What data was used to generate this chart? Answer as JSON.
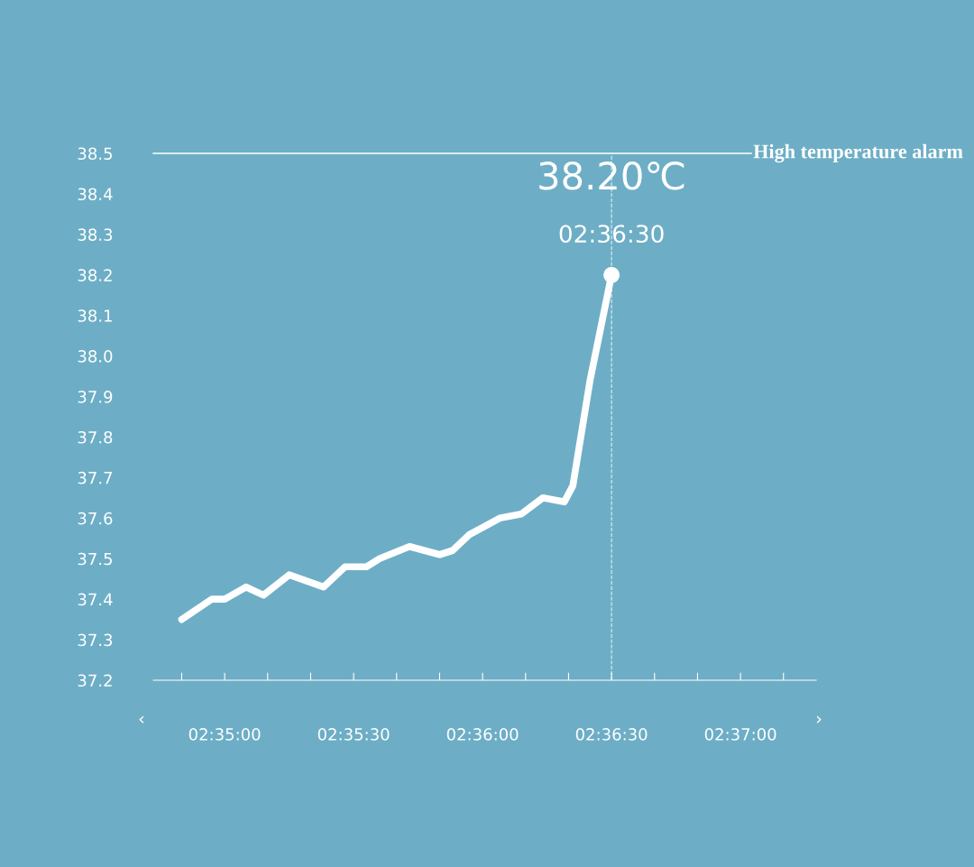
{
  "chart_data": {
    "type": "line",
    "x": [
      2.580556,
      2.5825,
      2.583333,
      2.584722,
      2.585833,
      2.5875,
      2.589722,
      2.591111,
      2.5925,
      2.593333,
      2.595278,
      2.597222,
      2.598056,
      2.599167,
      2.601111,
      2.6025,
      2.603889,
      2.605278,
      2.605833,
      2.606944,
      2.608333
    ],
    "series": [
      {
        "color": "#ffffff",
        "values": [
          37.35,
          37.4,
          37.4,
          37.43,
          37.41,
          37.46,
          37.43,
          37.48,
          37.48,
          37.5,
          37.53,
          37.51,
          37.52,
          37.56,
          37.6,
          37.61,
          37.65,
          37.64,
          37.68,
          37.94,
          38.2
        ]
      }
    ],
    "xlim": [
      2.578722,
      2.621556
    ],
    "xticks": [
      {
        "value": 2.580556,
        "label": null
      },
      {
        "value": 2.583333,
        "label": "02:35:00"
      },
      {
        "value": 2.586111,
        "label": null
      },
      {
        "value": 2.588889,
        "label": null
      },
      {
        "value": 2.591667,
        "label": "02:35:30"
      },
      {
        "value": 2.594444,
        "label": null
      },
      {
        "value": 2.597222,
        "label": null
      },
      {
        "value": 2.6,
        "label": "02:36:00"
      },
      {
        "value": 2.602778,
        "label": null
      },
      {
        "value": 2.605556,
        "label": null
      },
      {
        "value": 2.608333,
        "label": "02:36:30"
      },
      {
        "value": 2.611111,
        "label": null
      },
      {
        "value": 2.613889,
        "label": null
      },
      {
        "value": 2.616667,
        "label": "02:37:00"
      },
      {
        "value": 2.619444,
        "label": null
      }
    ],
    "ylim": [
      37.2,
      38.5
    ],
    "yticks": [
      {
        "value": 37.2,
        "label": "37.2"
      },
      {
        "value": 37.3,
        "label": "37.3"
      },
      {
        "value": 37.4,
        "label": "37.4"
      },
      {
        "value": 37.5,
        "label": "37.5"
      },
      {
        "value": 37.6,
        "label": "37.6"
      },
      {
        "value": 37.7,
        "label": "37.7"
      },
      {
        "value": 37.8,
        "label": "37.8"
      },
      {
        "value": 37.9,
        "label": "37.9"
      },
      {
        "value": 38.0,
        "label": "38.0"
      },
      {
        "value": 38.1,
        "label": "38.1"
      },
      {
        "value": 38.2,
        "label": "38.2"
      },
      {
        "value": 38.3,
        "label": "38.3"
      },
      {
        "value": 38.4,
        "label": "38.4"
      },
      {
        "value": 38.5,
        "label": "38.5"
      }
    ],
    "ref_lines": [
      {
        "axis": "y",
        "value": 38.5,
        "label": "High temperature alarm",
        "color": "#ffffff",
        "line_style": "solid"
      },
      {
        "axis": "x",
        "value": 2.608333,
        "label": null,
        "color": "#ffffff",
        "line_style": "dashed"
      }
    ],
    "annotations": [
      {
        "text": "38.20℃",
        "x": 2.608333,
        "y": 38.2
      },
      {
        "text": "02:36:30",
        "x": 2.608333,
        "y": 38.2
      },
      "‹",
      "›"
    ],
    "grid": false,
    "legend": false,
    "marker": "none",
    "line_style": "solid"
  }
}
